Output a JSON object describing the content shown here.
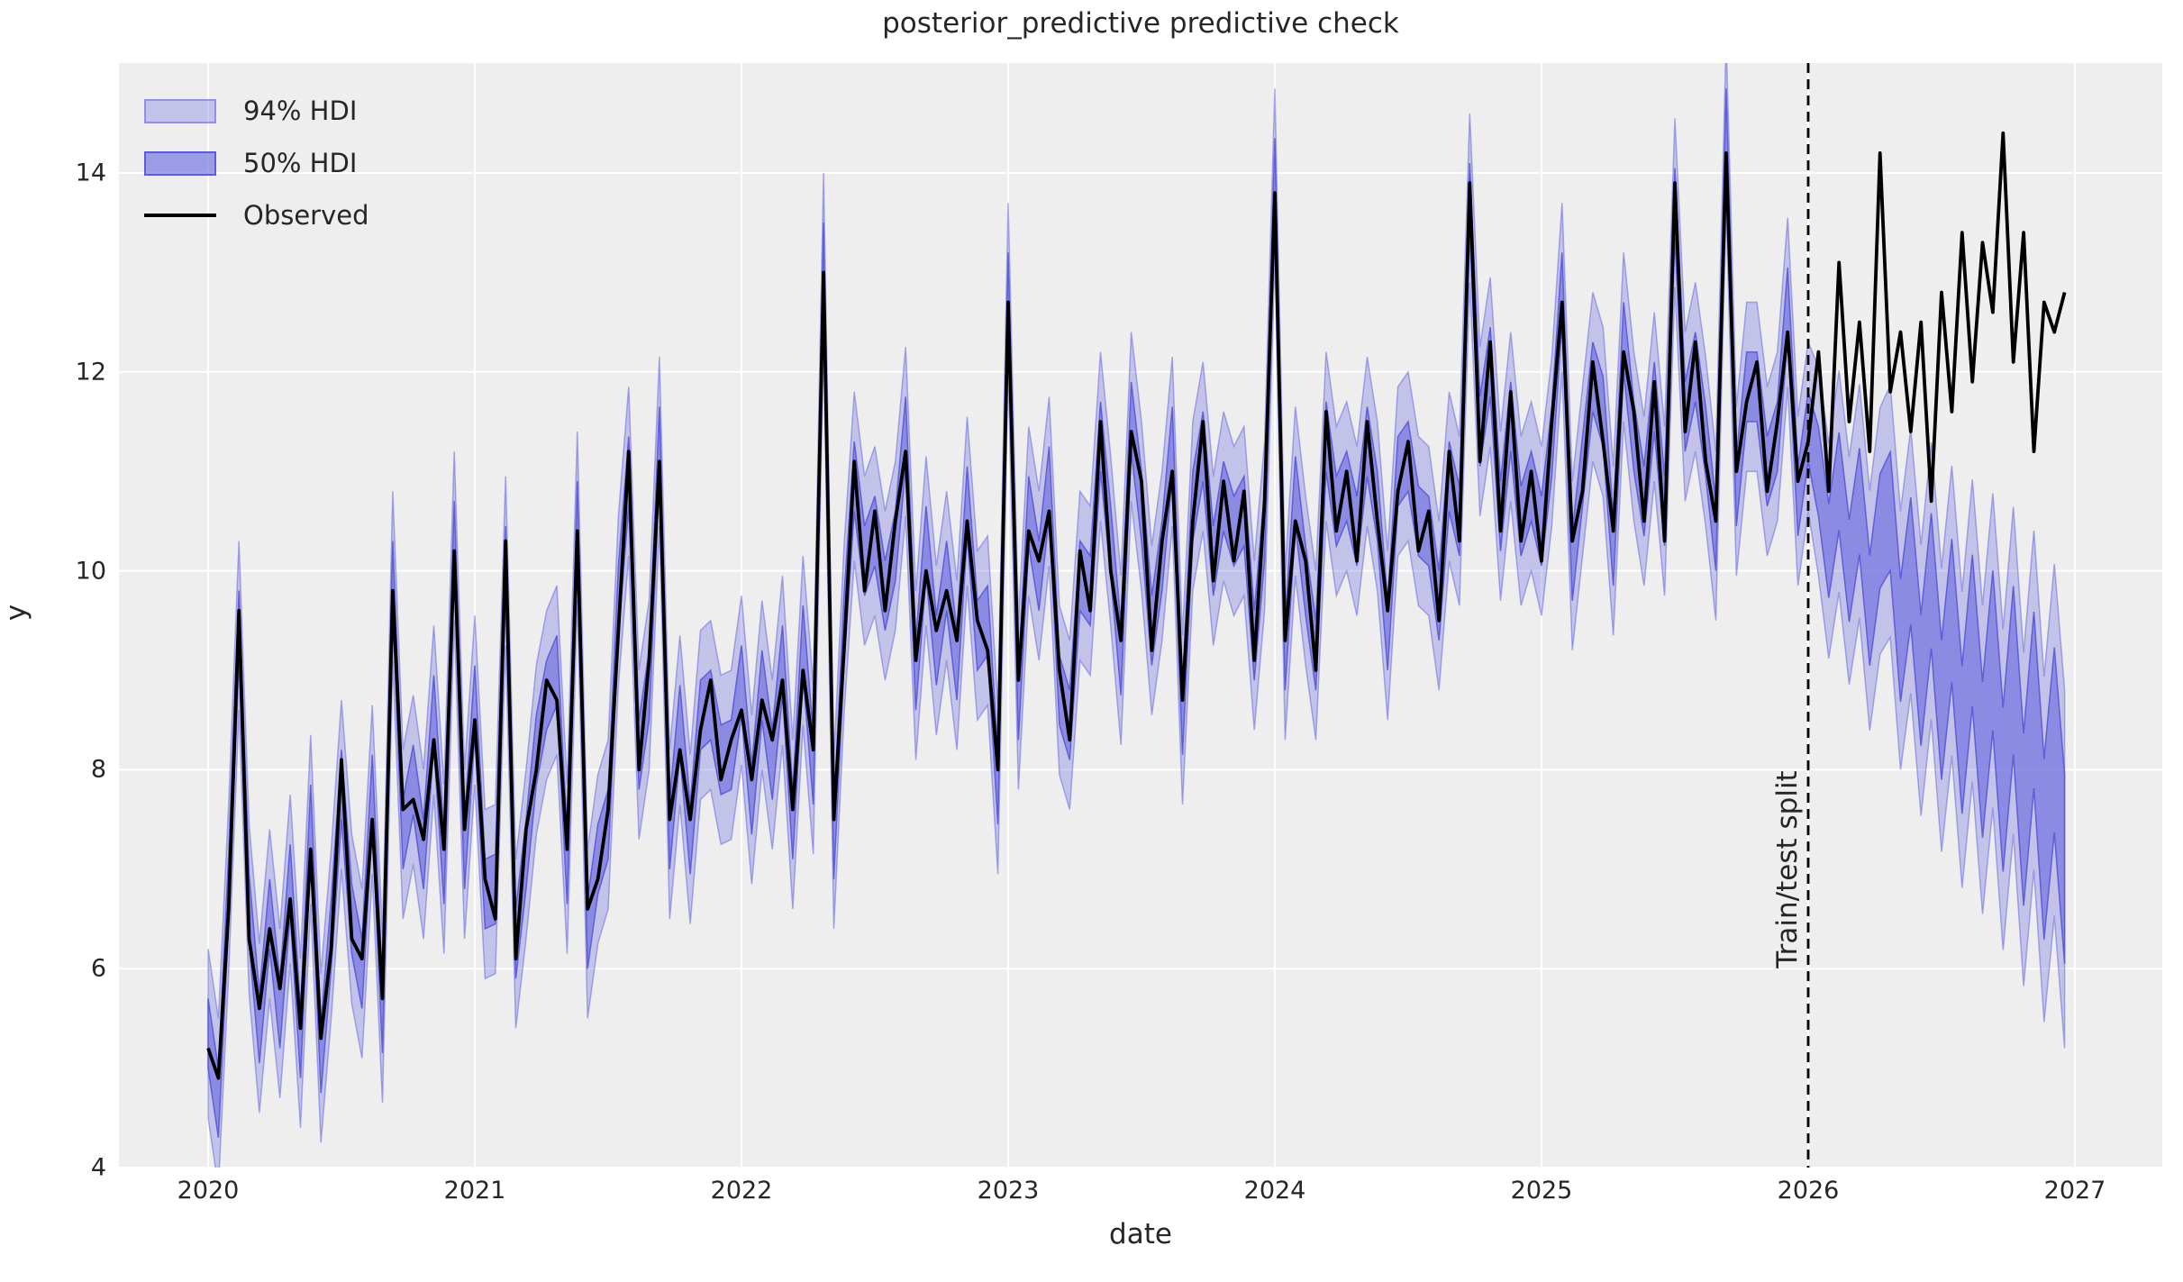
{
  "chart_data": {
    "type": "line",
    "title": "posterior_predictive predictive check",
    "xlabel": "date",
    "ylabel": "y",
    "x_ticks": [
      2020,
      2021,
      2022,
      2023,
      2024,
      2025,
      2026,
      2027
    ],
    "y_ticks": [
      4,
      6,
      8,
      10,
      12,
      14
    ],
    "x_range": [
      2019.66,
      2027.33
    ],
    "y_range_top_value": 15.1,
    "y_range": [
      4,
      15.1
    ],
    "grid": true,
    "plot_bg_color": "#eeeeee",
    "grid_color": "#ffffff",
    "text_color": "#262626",
    "legend": {
      "position": "upper-left",
      "entries": [
        {
          "label": "94% HDI",
          "type": "patch",
          "fill": "rgba(105,105,224,0.32)",
          "edge": "rgba(105,105,224,0.55)"
        },
        {
          "label": "50% HDI",
          "type": "patch",
          "fill": "rgba(105,105,224,0.62)",
          "edge": "rgba(82,82,214,0.85)"
        },
        {
          "label": "Observed",
          "type": "line",
          "color": "#000000"
        }
      ]
    },
    "split_line": {
      "x": 2026,
      "label": "Train/test split",
      "style": "dashed",
      "color": "#000000"
    },
    "series_x": {
      "start": 2020,
      "step": 0.0384615,
      "unit": "decimal_year"
    },
    "observed": [
      5.2,
      4.9,
      6.6,
      9.6,
      6.3,
      5.6,
      6.4,
      5.8,
      6.7,
      5.4,
      7.2,
      5.3,
      6.2,
      8.1,
      6.3,
      6.1,
      7.5,
      5.7,
      9.8,
      7.6,
      7.7,
      7.3,
      8.3,
      7.2,
      10.2,
      7.4,
      8.5,
      6.9,
      6.5,
      10.3,
      6.1,
      7.4,
      8.0,
      8.9,
      8.7,
      7.2,
      10.4,
      6.6,
      6.9,
      7.6,
      9.4,
      11.2,
      8.0,
      9.1,
      11.1,
      7.5,
      8.2,
      7.5,
      8.4,
      8.9,
      7.9,
      8.3,
      8.6,
      7.9,
      8.7,
      8.3,
      8.9,
      7.6,
      9.0,
      8.2,
      13.0,
      7.5,
      9.2,
      11.1,
      9.8,
      10.6,
      9.6,
      10.5,
      11.2,
      9.1,
      10.0,
      9.4,
      9.8,
      9.3,
      10.5,
      9.5,
      9.2,
      8.0,
      12.7,
      8.9,
      10.4,
      10.1,
      10.6,
      9.0,
      8.3,
      10.2,
      9.6,
      11.5,
      10.0,
      9.3,
      11.4,
      10.9,
      9.2,
      10.3,
      11.0,
      8.7,
      10.5,
      11.5,
      9.9,
      10.9,
      10.1,
      10.8,
      9.1,
      10.7,
      13.8,
      9.3,
      10.5,
      10.1,
      9.0,
      11.6,
      10.4,
      11.0,
      10.1,
      11.5,
      10.5,
      9.6,
      10.8,
      11.3,
      10.2,
      10.6,
      9.5,
      11.2,
      10.3,
      13.9,
      11.1,
      12.3,
      10.4,
      11.8,
      10.3,
      11.0,
      10.1,
      11.5,
      12.7,
      10.3,
      10.8,
      12.1,
      11.3,
      10.4,
      12.2,
      11.6,
      10.5,
      11.9,
      10.3,
      13.9,
      11.4,
      12.3,
      11.1,
      10.5,
      14.2,
      11.0,
      11.7,
      12.1,
      10.8,
      11.5,
      12.4,
      10.9,
      11.3,
      12.2,
      10.8,
      13.1,
      11.5,
      12.5,
      11.2,
      14.2,
      11.8,
      12.4,
      11.4,
      12.5,
      10.7,
      12.8,
      11.6,
      13.4,
      11.9,
      13.3,
      12.6,
      14.4,
      12.1,
      13.4,
      11.2,
      12.7,
      12.4,
      12.8
    ],
    "pred_offsets_cycle": [
      0.15,
      -0.25,
      0.2,
      -0.15,
      0.3,
      -0.2
    ],
    "pred_center_post_split": [
      11.0,
      10.2,
      10.9,
      10.0,
      10.7,
      9.6,
      10.4,
      10.6,
      9.3,
      10.1,
      8.9,
      9.9,
      8.6,
      9.6,
      8.3,
      9.4,
      8.1,
      9.2,
      7.8,
      9.0,
      7.5,
      8.7,
      7.2,
      8.3,
      7.0,
      7.9
    ],
    "hdi50_halfwidth": {
      "pre_split": 0.35,
      "post_split_start": 0.45,
      "post_split_end": 0.95
    },
    "hdi94_halfwidth": {
      "pre_split": 0.85,
      "post_split_start": 1.05,
      "post_split_end": 1.8
    },
    "colors": {
      "band": "#6969e0",
      "observed": "#000000"
    }
  }
}
